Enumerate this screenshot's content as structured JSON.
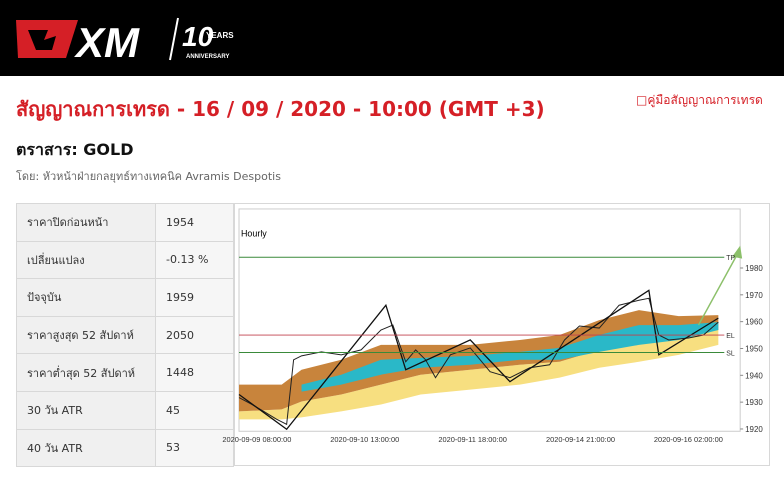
{
  "header": {
    "logo": "XM",
    "badge": "10",
    "badge_text": "YEARS",
    "badge_sub": "ANNIVERSARY"
  },
  "title": "สัญญาณการเทรด - 16 / 09 / 2020 - 10:00 (GMT +3)",
  "guide_link": "คู่มือสัญญาณการเทรด",
  "instrument": "ตราสาร: GOLD",
  "author": "โดย: หัวหน้าฝ่ายกลยุทธ์ทางเทคนิค Avramis Despotis",
  "table": {
    "rows": [
      [
        "ราคาปิดก่อนหน้า",
        "1954"
      ],
      [
        "เปลี่ยนแปลง",
        "-0.13 %"
      ],
      [
        "ปัจจุบัน",
        "1959"
      ],
      [
        "ราคาสูงสุด 52 สัปดาห์",
        "2050"
      ],
      [
        "ราคาต่ำสุด 52 สัปดาห์",
        "1448"
      ],
      [
        "30 วัน ATR",
        "45"
      ],
      [
        "40 วัน ATR",
        "53"
      ]
    ]
  },
  "chart": {
    "timeframe": "Hourly",
    "ylim": [
      1919,
      2002
    ],
    "yticks": [
      1980,
      1970,
      1960,
      1950,
      1940,
      1930,
      1920
    ],
    "levels": [
      {
        "label": "TP",
        "value": 1984,
        "color": "#3a8a3a"
      },
      {
        "label": "EL",
        "value": 1955,
        "color": "#c0404c"
      },
      {
        "label": "SL",
        "value": 1948.5,
        "color": "#3a8a3a"
      }
    ],
    "xlabels": [
      "2020-09-09 08:00:00",
      "2020-09-10 13:00:00",
      "2020-09-11 18:00:00",
      "2020-09-14 21:00:00",
      "2020-09-16 02:00:00"
    ]
  }
}
